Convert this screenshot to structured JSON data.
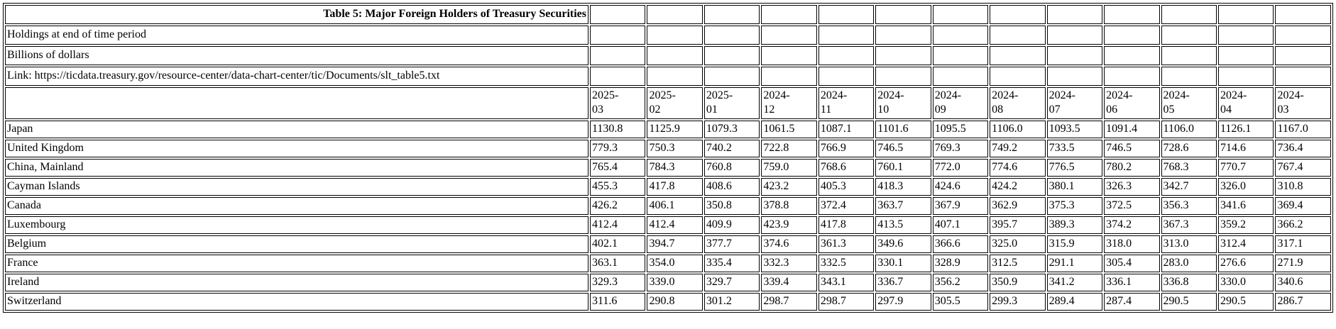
{
  "page": {
    "background_color": "#ffffff",
    "text_color": "#000000",
    "border_color": "#000000"
  },
  "chart_data": {
    "type": "table",
    "title": "Table 5: Major Foreign Holders of Treasury Securities",
    "notes": [
      "Holdings at end of time period",
      "Billions of dollars"
    ],
    "link_text": "Link: https://ticdata.treasury.gov/resource-center/data-chart-center/tic/Documents/slt_table5.txt",
    "columns": [
      "2025-03",
      "2025-02",
      "2025-01",
      "2024-12",
      "2024-11",
      "2024-10",
      "2024-09",
      "2024-08",
      "2024-07",
      "2024-06",
      "2024-05",
      "2024-04",
      "2024-03"
    ],
    "rows": [
      {
        "label": "Japan",
        "values": [
          "1130.8",
          "1125.9",
          "1079.3",
          "1061.5",
          "1087.1",
          "1101.6",
          "1095.5",
          "1106.0",
          "1093.5",
          "1091.4",
          "1106.0",
          "1126.1",
          "1167.0"
        ]
      },
      {
        "label": "United Kingdom",
        "values": [
          "779.3",
          "750.3",
          "740.2",
          "722.8",
          "766.9",
          "746.5",
          "769.3",
          "749.2",
          "733.5",
          "746.5",
          "728.6",
          "714.6",
          "736.4"
        ]
      },
      {
        "label": "China, Mainland",
        "values": [
          "765.4",
          "784.3",
          "760.8",
          "759.0",
          "768.6",
          "760.1",
          "772.0",
          "774.6",
          "776.5",
          "780.2",
          "768.3",
          "770.7",
          "767.4"
        ]
      },
      {
        "label": "Cayman Islands",
        "values": [
          "455.3",
          "417.8",
          "408.6",
          "423.2",
          "405.3",
          "418.3",
          "424.6",
          "424.2",
          "380.1",
          "326.3",
          "342.7",
          "326.0",
          "310.8"
        ]
      },
      {
        "label": "Canada",
        "values": [
          "426.2",
          "406.1",
          "350.8",
          "378.8",
          "372.4",
          "363.7",
          "367.9",
          "362.9",
          "375.3",
          "372.5",
          "356.3",
          "341.6",
          "369.4"
        ]
      },
      {
        "label": "Luxembourg",
        "values": [
          "412.4",
          "412.4",
          "409.9",
          "423.9",
          "417.8",
          "413.5",
          "407.1",
          "395.7",
          "389.3",
          "374.2",
          "367.3",
          "359.2",
          "366.2"
        ]
      },
      {
        "label": "Belgium",
        "values": [
          "402.1",
          "394.7",
          "377.7",
          "374.6",
          "361.3",
          "349.6",
          "366.6",
          "325.0",
          "315.9",
          "318.0",
          "313.0",
          "312.4",
          "317.1"
        ]
      },
      {
        "label": "France",
        "values": [
          "363.1",
          "354.0",
          "335.4",
          "332.3",
          "332.5",
          "330.1",
          "328.9",
          "312.5",
          "291.1",
          "305.4",
          "283.0",
          "276.6",
          "271.9"
        ]
      },
      {
        "label": "Ireland",
        "values": [
          "329.3",
          "339.0",
          "329.7",
          "339.4",
          "343.1",
          "336.7",
          "356.2",
          "350.9",
          "341.2",
          "336.1",
          "336.8",
          "330.0",
          "340.6"
        ]
      },
      {
        "label": "Switzerland",
        "values": [
          "311.6",
          "290.8",
          "301.2",
          "298.7",
          "298.7",
          "297.9",
          "305.5",
          "299.3",
          "289.4",
          "287.4",
          "290.5",
          "290.5",
          "286.7"
        ]
      }
    ]
  }
}
